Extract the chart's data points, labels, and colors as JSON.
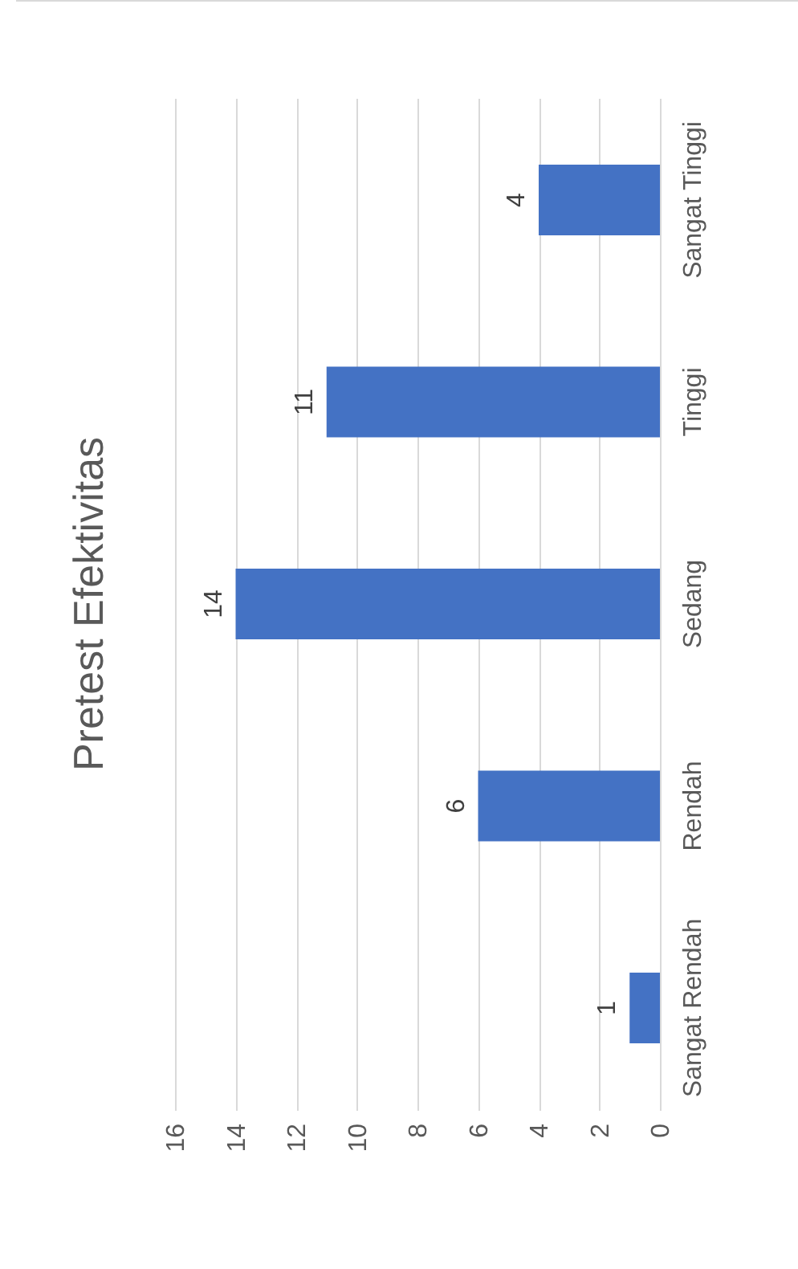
{
  "chart_data": {
    "type": "bar",
    "orientation": "horizontal",
    "title": "Pretest Efektivitas",
    "categories": [
      "Sangat Tinggi",
      "Tinggi",
      "Sedang",
      "Rendah",
      "Sangat Rendah"
    ],
    "values": [
      4,
      11,
      14,
      6,
      1
    ],
    "color": "#4472c4",
    "xlim": [
      16,
      0
    ],
    "xticks": [
      0,
      2,
      4,
      6,
      8,
      10,
      12,
      14,
      16
    ],
    "grid": "x",
    "data_labels": true
  }
}
